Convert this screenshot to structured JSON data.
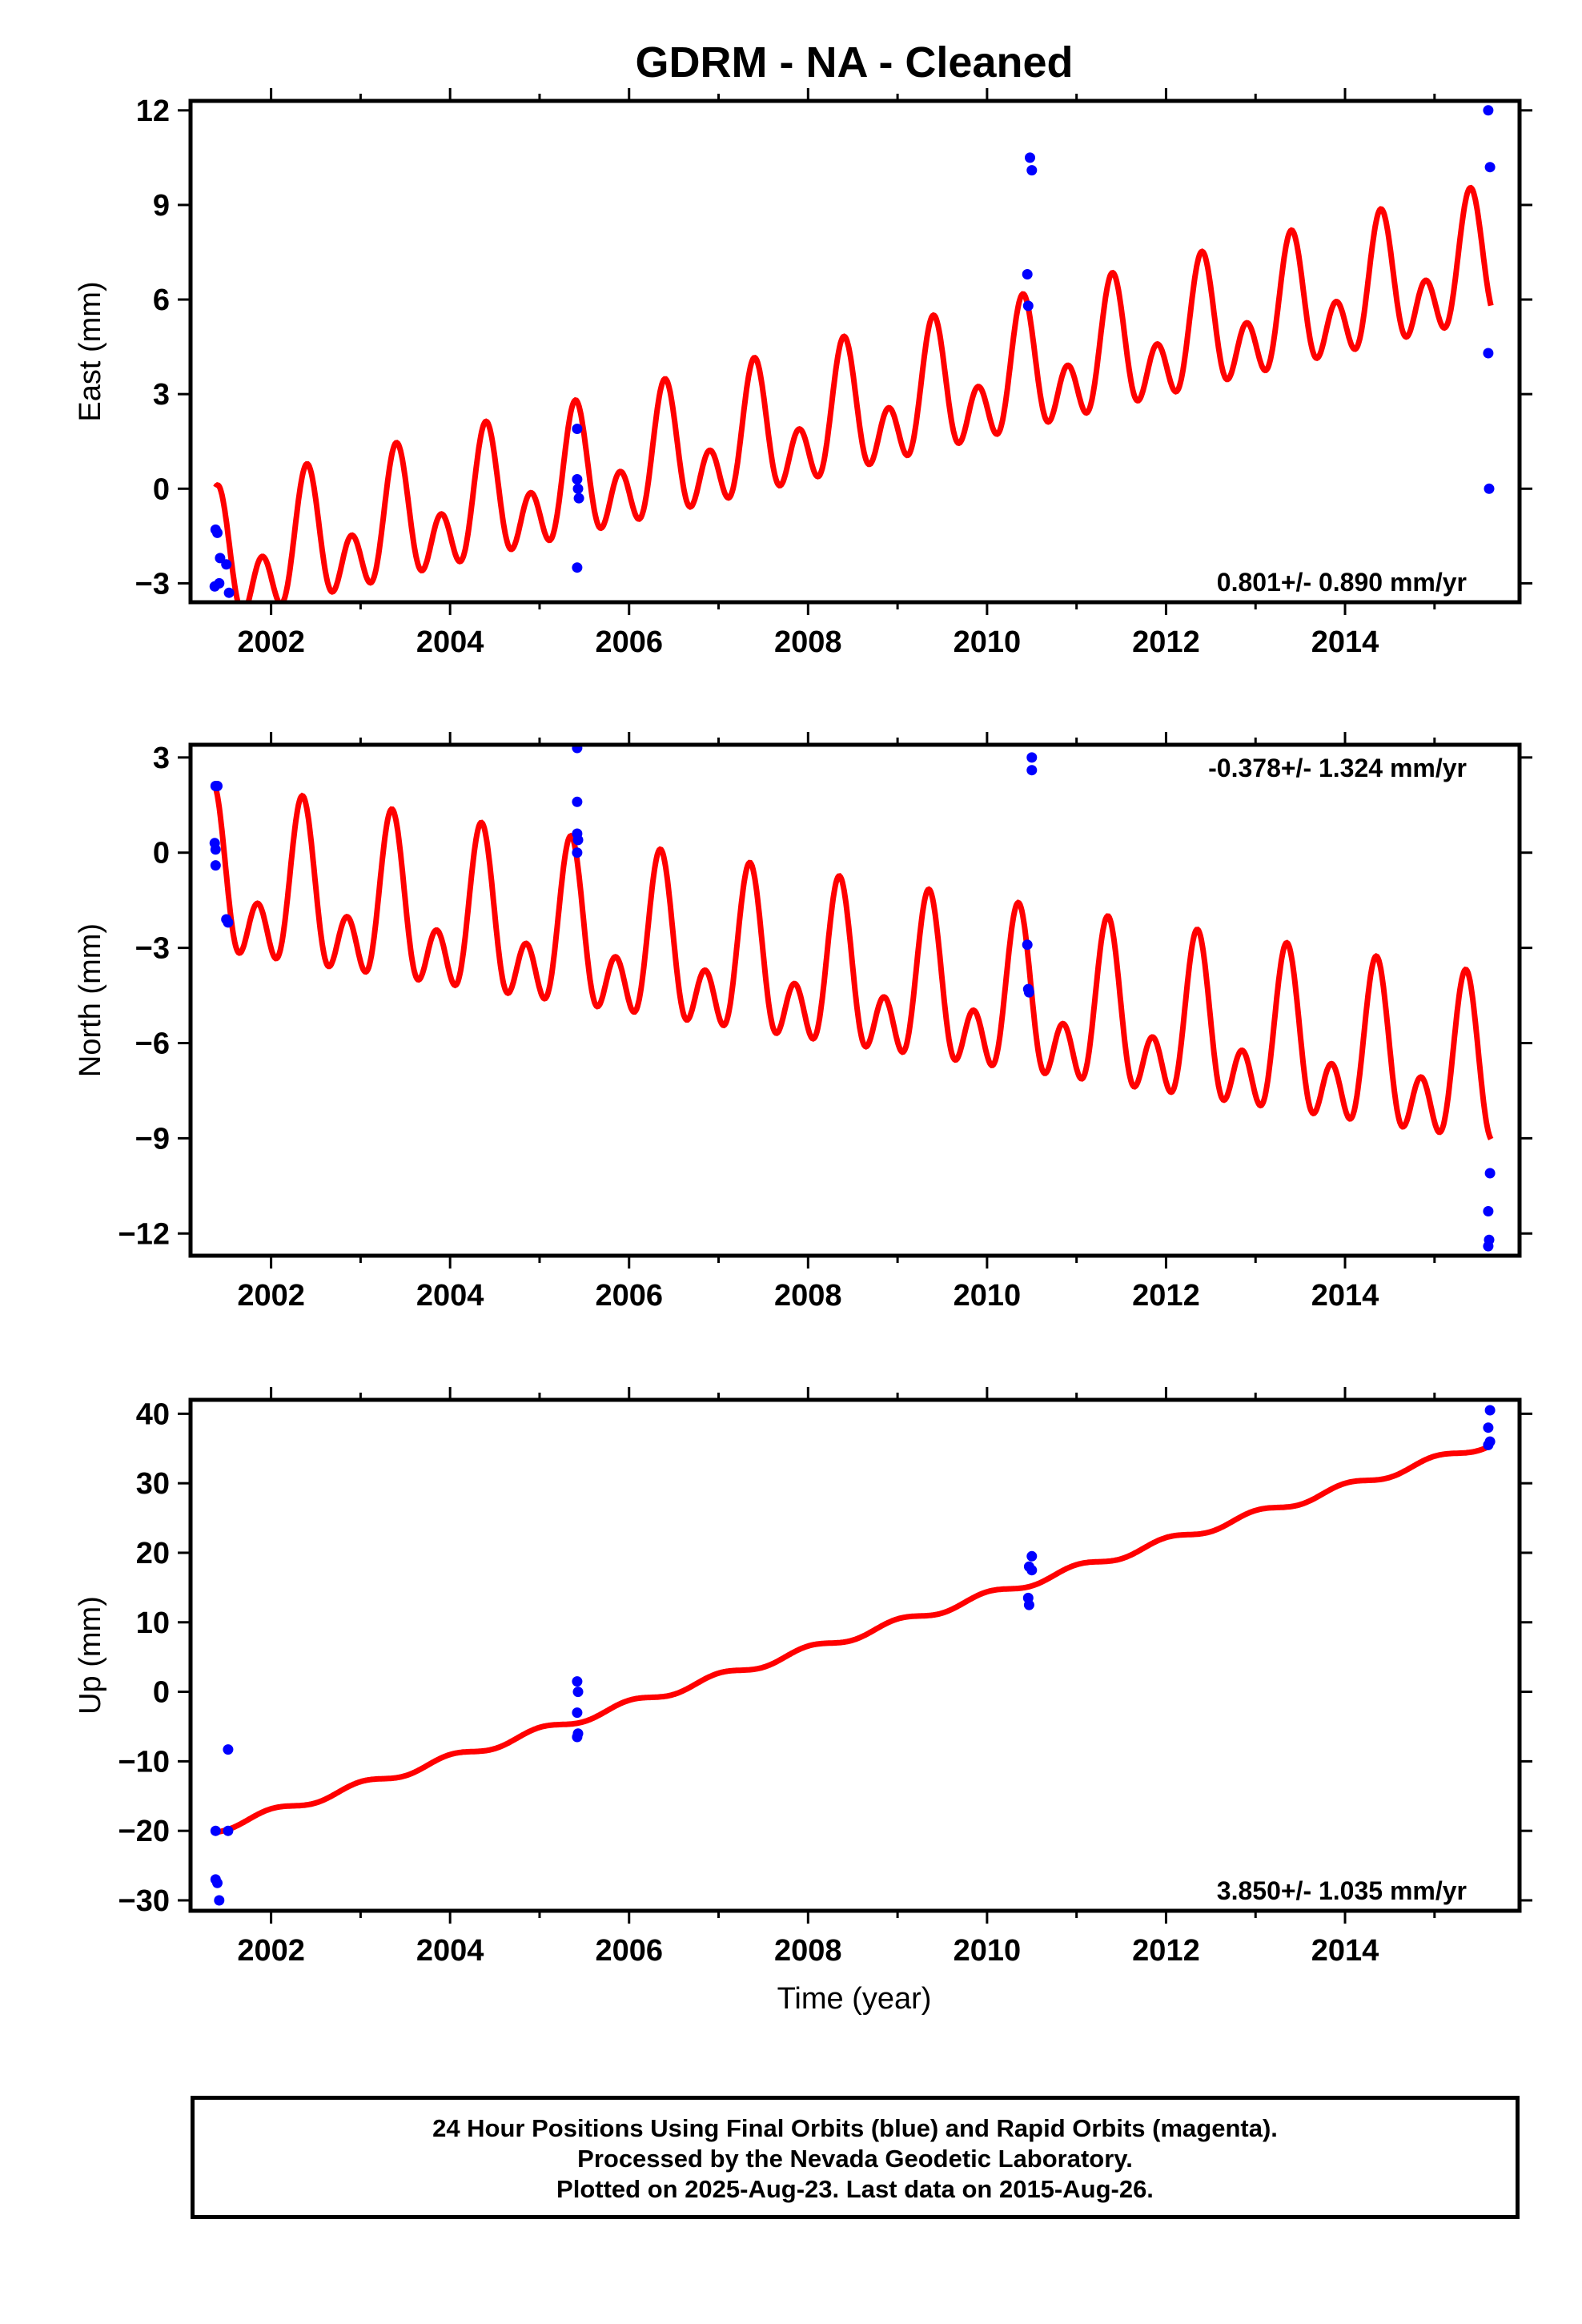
{
  "title": "GDRM  - NA - Cleaned",
  "xlabel": "Time (year)",
  "x_ticks": [
    "2002",
    "2004",
    "2006",
    "2008",
    "2010",
    "2012",
    "2014"
  ],
  "footer": {
    "line1": "24 Hour Positions Using Final Orbits (blue) and Rapid Orbits (magenta).",
    "line2": "Processed by the Nevada Geodetic Laboratory.",
    "line3": "Plotted on 2025-Aug-23. Last data on 2015-Aug-26."
  },
  "colors": {
    "data_points": "#0000ff",
    "model_fit": "#ff0000",
    "frame": "#000000"
  },
  "chart_data": [
    {
      "type": "scatter",
      "ylabel": "East (mm)",
      "xlim": [
        2001.1,
        2015.95
      ],
      "ylim": [
        -3.6,
        12.3
      ],
      "y_ticks": [
        "12",
        "9",
        "6",
        "3",
        "0",
        "−3"
      ],
      "y_tick_values": [
        12,
        9,
        6,
        3,
        0,
        -3
      ],
      "rate_label": "0.801+/- 0.890 mm/yr",
      "rate_position": "bottom-right",
      "points": [
        [
          2001.38,
          -1.3
        ],
        [
          2001.4,
          -1.4
        ],
        [
          2001.37,
          -3.1
        ],
        [
          2001.42,
          -3.0
        ],
        [
          2001.43,
          -2.2
        ],
        [
          2001.5,
          -2.4
        ],
        [
          2001.53,
          -3.3
        ],
        [
          2005.42,
          1.9
        ],
        [
          2005.42,
          0.3
        ],
        [
          2005.43,
          0.0
        ],
        [
          2005.44,
          -0.3
        ],
        [
          2005.42,
          -2.5
        ],
        [
          2010.48,
          10.5
        ],
        [
          2010.5,
          10.1
        ],
        [
          2010.45,
          6.8
        ],
        [
          2010.46,
          5.8
        ],
        [
          2015.6,
          12.0
        ],
        [
          2015.62,
          10.2
        ],
        [
          2015.6,
          4.3
        ],
        [
          2015.61,
          0.0
        ]
      ],
      "model": {
        "t0": 2001.38,
        "t1": 2015.63,
        "y_start": -2.6,
        "y_end": 7.0,
        "annual_amp": 1.3,
        "semiannual_amp": 1.4,
        "phase": 0.4
      }
    },
    {
      "type": "scatter",
      "ylabel": "North (mm)",
      "xlim": [
        2001.1,
        2015.95
      ],
      "ylim": [
        -12.7,
        3.4
      ],
      "y_ticks": [
        "3",
        "0",
        "−3",
        "−6",
        "−9",
        "−12"
      ],
      "y_tick_values": [
        3,
        0,
        -3,
        -6,
        -9,
        -12
      ],
      "rate_label": "-0.378+/- 1.324 mm/yr",
      "rate_position": "top-right",
      "points": [
        [
          2001.38,
          2.1
        ],
        [
          2001.4,
          2.1
        ],
        [
          2001.37,
          0.3
        ],
        [
          2001.38,
          0.1
        ],
        [
          2001.38,
          -0.4
        ],
        [
          2001.5,
          -2.1
        ],
        [
          2001.52,
          -2.2
        ],
        [
          2005.42,
          3.3
        ],
        [
          2005.42,
          1.6
        ],
        [
          2005.42,
          0.6
        ],
        [
          2005.43,
          0.4
        ],
        [
          2005.42,
          0.0
        ],
        [
          2010.5,
          3.0
        ],
        [
          2010.5,
          2.6
        ],
        [
          2010.45,
          -2.9
        ],
        [
          2010.46,
          -4.3
        ],
        [
          2010.47,
          -4.4
        ],
        [
          2015.62,
          -10.1
        ],
        [
          2015.6,
          -11.3
        ],
        [
          2015.61,
          -12.2
        ],
        [
          2015.6,
          -12.4
        ]
      ],
      "model": {
        "t0": 2001.38,
        "t1": 2015.63,
        "y_start": -1.2,
        "y_end": -7.2,
        "annual_amp": 1.8,
        "semiannual_amp": 1.6,
        "phase": 0.35
      }
    },
    {
      "type": "scatter",
      "ylabel": "Up (mm)",
      "xlim": [
        2001.1,
        2015.95
      ],
      "ylim": [
        -31.5,
        42
      ],
      "y_ticks": [
        "40",
        "30",
        "20",
        "10",
        "0",
        "−10",
        "−20",
        "−30"
      ],
      "y_tick_values": [
        40,
        30,
        20,
        10,
        0,
        -10,
        -20,
        -30
      ],
      "rate_label": "3.850+/- 1.035 mm/yr",
      "rate_position": "bottom-right",
      "points": [
        [
          2001.38,
          -27.0
        ],
        [
          2001.4,
          -27.5
        ],
        [
          2001.42,
          -30.0
        ],
        [
          2001.38,
          -20.0
        ],
        [
          2001.52,
          -8.3
        ],
        [
          2001.52,
          -20.0
        ],
        [
          2005.42,
          1.5
        ],
        [
          2005.43,
          0.0
        ],
        [
          2005.42,
          -3.0
        ],
        [
          2005.43,
          -6.0
        ],
        [
          2005.42,
          -6.5
        ],
        [
          2010.5,
          19.5
        ],
        [
          2010.47,
          18.0
        ],
        [
          2010.5,
          17.5
        ],
        [
          2010.46,
          13.5
        ],
        [
          2010.47,
          12.5
        ],
        [
          2015.62,
          40.5
        ],
        [
          2015.6,
          38.0
        ],
        [
          2015.62,
          36.0
        ],
        [
          2015.6,
          35.5
        ]
      ],
      "model": {
        "t0": 2001.38,
        "t1": 2015.63,
        "y_start": -19.8,
        "y_end": 35.8,
        "annual_amp": 0.55,
        "semiannual_amp": 0.0,
        "phase": 0.0
      }
    }
  ]
}
